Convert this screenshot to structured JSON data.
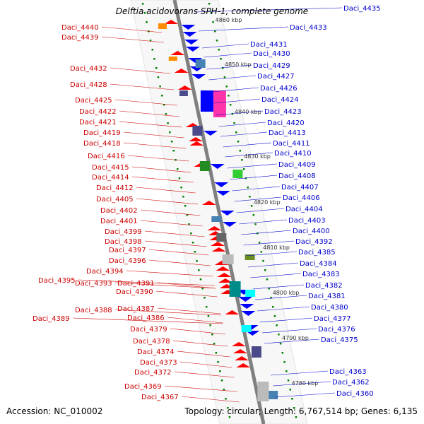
{
  "title": "Delftia acidovorans SPH-1, complete genome",
  "footer": {
    "accession": "Accession: NC_010002",
    "topology": "Topology: circular; Length: 6,767,514 bp; Genes: 6,135"
  },
  "colors": {
    "forward": "#ff0000",
    "reverse": "#0000ff",
    "backbone": "#808080",
    "scale_dot": "#008000",
    "label_left": "#cc0000",
    "label_right": "#0000cc"
  },
  "scale_labels": [
    "4860 kbp",
    "4850 kbp",
    "4840 kbp",
    "4830 kbp",
    "4820 kbp",
    "4810 kbp",
    "4800 kbp",
    "4790 kbp",
    "4780 kbp"
  ],
  "left_labels": [
    "Daci_4440",
    "Daci_4439",
    "Daci_4432",
    "Daci_4428",
    "Daci_4425",
    "Daci_4422",
    "Daci_4421",
    "Daci_4419",
    "Daci_4418",
    "Daci_4416",
    "Daci_4415",
    "Daci_4414",
    "Daci_4412",
    "Daci_4405",
    "Daci_4402",
    "Daci_4401",
    "Daci_4399",
    "Daci_4398",
    "Daci_4397",
    "Daci_4396",
    "Daci_4394",
    "Daci_4395",
    "Daci_4393",
    "Daci_4391",
    "Daci_4390",
    "Daci_4388",
    "Daci_4387",
    "Daci_4389",
    "Daci_4386",
    "Daci_4379",
    "Daci_4378",
    "Daci_4374",
    "Daci_4373",
    "Daci_4372",
    "Daci_4369",
    "Daci_4367"
  ],
  "right_labels": [
    "Daci_4435",
    "Daci_4433",
    "Daci_4431",
    "Daci_4430",
    "Daci_4429",
    "Daci_4427",
    "Daci_4426",
    "Daci_4424",
    "Daci_4423",
    "Daci_4420",
    "Daci_4413",
    "Daci_4411",
    "Daci_4410",
    "Daci_4409",
    "Daci_4408",
    "Daci_4407",
    "Daci_4406",
    "Daci_4404",
    "Daci_4403",
    "Daci_4400",
    "Daci_4392",
    "Daci_4385",
    "Daci_4384",
    "Daci_4383",
    "Daci_4382",
    "Daci_4381",
    "Daci_4380",
    "Daci_4377",
    "Daci_4376",
    "Daci_4375",
    "Daci_4363",
    "Daci_4362",
    "Daci_4360"
  ]
}
